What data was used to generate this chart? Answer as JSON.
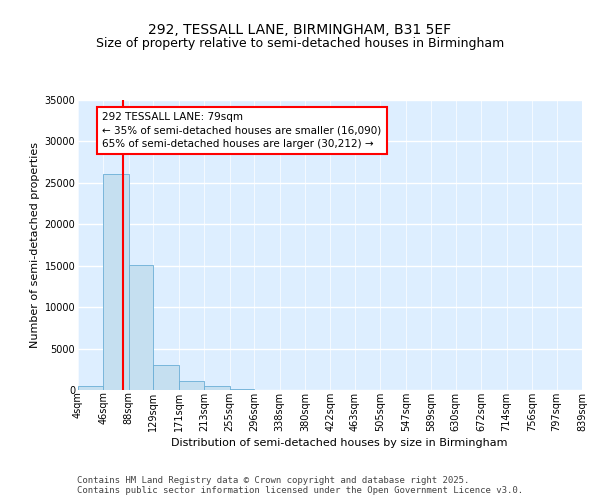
{
  "title": "292, TESSALL LANE, BIRMINGHAM, B31 5EF",
  "subtitle": "Size of property relative to semi-detached houses in Birmingham",
  "xlabel": "Distribution of semi-detached houses by size in Birmingham",
  "ylabel": "Number of semi-detached properties",
  "bins": [
    4,
    46,
    88,
    129,
    171,
    213,
    255,
    296,
    338,
    380,
    422,
    463,
    505,
    547,
    589,
    630,
    672,
    714,
    756,
    797,
    839
  ],
  "bin_labels": [
    "4sqm",
    "46sqm",
    "88sqm",
    "129sqm",
    "171sqm",
    "213sqm",
    "255sqm",
    "296sqm",
    "338sqm",
    "380sqm",
    "422sqm",
    "463sqm",
    "505sqm",
    "547sqm",
    "589sqm",
    "630sqm",
    "672sqm",
    "714sqm",
    "756sqm",
    "797sqm",
    "839sqm"
  ],
  "counts": [
    500,
    26100,
    15100,
    3050,
    1100,
    500,
    100,
    50,
    20,
    10,
    5,
    5,
    2,
    2,
    1,
    1,
    1,
    0,
    0,
    0
  ],
  "bar_color": "#c5dff0",
  "bar_edge_color": "#6aaed6",
  "property_size": 79,
  "property_name": "292 TESSALL LANE: 79sqm",
  "pct_smaller": 35,
  "n_smaller": 16090,
  "pct_larger": 65,
  "n_larger": 30212,
  "vline_color": "red",
  "background_color": "#ddeeff",
  "ylim": [
    0,
    35000
  ],
  "yticks": [
    0,
    5000,
    10000,
    15000,
    20000,
    25000,
    30000,
    35000
  ],
  "footer_line1": "Contains HM Land Registry data © Crown copyright and database right 2025.",
  "footer_line2": "Contains public sector information licensed under the Open Government Licence v3.0.",
  "title_fontsize": 10,
  "subtitle_fontsize": 9,
  "axis_label_fontsize": 8,
  "tick_fontsize": 7,
  "ann_fontsize": 7.5,
  "footer_fontsize": 6.5
}
